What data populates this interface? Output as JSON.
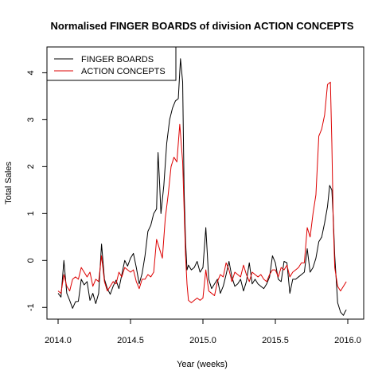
{
  "chart_data": {
    "type": "line",
    "title": "Normalised FINGER BOARDS of division ACTION CONCEPTS",
    "xlabel": "Year (weeks)",
    "ylabel": "Total Sales",
    "xlim": [
      2014.0,
      2016.0
    ],
    "ylim": [
      -1.25,
      4.55
    ],
    "xticks": [
      2014.0,
      2014.5,
      2015.0,
      2015.5,
      2016.0
    ],
    "xtick_labels": [
      "2014.0",
      "2014.5",
      "2015.0",
      "2015.5",
      "2016.0"
    ],
    "yticks": [
      -1,
      0,
      1,
      2,
      3,
      4
    ],
    "ytick_labels": [
      "-1",
      "0",
      "1",
      "2",
      "3",
      "4"
    ],
    "grid": false,
    "legend": "top-left",
    "series": [
      {
        "name": "FINGER BOARDS",
        "color": "#000000",
        "points": [
          [
            2014.0,
            -0.7
          ],
          [
            2014.02,
            -0.78
          ],
          [
            2014.04,
            0.0
          ],
          [
            2014.06,
            -0.7
          ],
          [
            2014.08,
            -0.85
          ],
          [
            2014.1,
            -1.02
          ],
          [
            2014.12,
            -0.88
          ],
          [
            2014.14,
            -0.87
          ],
          [
            2014.16,
            -0.4
          ],
          [
            2014.18,
            -0.52
          ],
          [
            2014.2,
            -0.45
          ],
          [
            2014.22,
            -0.85
          ],
          [
            2014.24,
            -0.7
          ],
          [
            2014.26,
            -0.92
          ],
          [
            2014.28,
            -0.7
          ],
          [
            2014.3,
            0.35
          ],
          [
            2014.32,
            -0.4
          ],
          [
            2014.34,
            -0.6
          ],
          [
            2014.36,
            -0.72
          ],
          [
            2014.38,
            -0.55
          ],
          [
            2014.4,
            -0.42
          ],
          [
            2014.42,
            -0.6
          ],
          [
            2014.44,
            -0.3
          ],
          [
            2014.46,
            0.0
          ],
          [
            2014.48,
            -0.12
          ],
          [
            2014.5,
            0.05
          ],
          [
            2014.52,
            0.15
          ],
          [
            2014.54,
            -0.15
          ],
          [
            2014.56,
            -0.5
          ],
          [
            2014.58,
            -0.28
          ],
          [
            2014.6,
            0.1
          ],
          [
            2014.62,
            0.62
          ],
          [
            2014.64,
            0.75
          ],
          [
            2014.66,
            1.0
          ],
          [
            2014.68,
            1.1
          ],
          [
            2014.69,
            2.3
          ],
          [
            2014.7,
            1.7
          ],
          [
            2014.71,
            1.0
          ],
          [
            2014.73,
            1.6
          ],
          [
            2014.75,
            2.5
          ],
          [
            2014.77,
            3.0
          ],
          [
            2014.79,
            3.25
          ],
          [
            2014.81,
            3.4
          ],
          [
            2014.83,
            3.45
          ],
          [
            2014.845,
            4.3
          ],
          [
            2014.86,
            3.8
          ],
          [
            2014.87,
            1.5
          ],
          [
            2014.88,
            0.4
          ],
          [
            2014.89,
            -0.2
          ],
          [
            2014.9,
            -0.1
          ],
          [
            2014.92,
            -0.2
          ],
          [
            2014.94,
            -0.15
          ],
          [
            2014.96,
            -0.02
          ],
          [
            2014.98,
            -0.25
          ],
          [
            2015.0,
            -0.15
          ],
          [
            2015.02,
            0.7
          ],
          [
            2015.04,
            -0.4
          ],
          [
            2015.06,
            -0.6
          ],
          [
            2015.08,
            -0.5
          ],
          [
            2015.1,
            -0.4
          ],
          [
            2015.12,
            -0.7
          ],
          [
            2015.14,
            -0.55
          ],
          [
            2015.16,
            -0.3
          ],
          [
            2015.18,
            -0.02
          ],
          [
            2015.2,
            -0.35
          ],
          [
            2015.22,
            -0.55
          ],
          [
            2015.24,
            -0.5
          ],
          [
            2015.26,
            -0.4
          ],
          [
            2015.28,
            -0.65
          ],
          [
            2015.3,
            -0.45
          ],
          [
            2015.32,
            -0.05
          ],
          [
            2015.34,
            -0.5
          ],
          [
            2015.36,
            -0.4
          ],
          [
            2015.38,
            -0.5
          ],
          [
            2015.4,
            -0.55
          ],
          [
            2015.42,
            -0.6
          ],
          [
            2015.44,
            -0.5
          ],
          [
            2015.46,
            -0.35
          ],
          [
            2015.48,
            0.1
          ],
          [
            2015.5,
            -0.05
          ],
          [
            2015.52,
            -0.4
          ],
          [
            2015.54,
            -0.45
          ],
          [
            2015.56,
            -0.02
          ],
          [
            2015.58,
            -0.05
          ],
          [
            2015.6,
            -0.7
          ],
          [
            2015.62,
            -0.4
          ],
          [
            2015.64,
            -0.4
          ],
          [
            2015.66,
            -0.35
          ],
          [
            2015.68,
            -0.3
          ],
          [
            2015.7,
            -0.25
          ],
          [
            2015.72,
            0.25
          ],
          [
            2015.74,
            -0.25
          ],
          [
            2015.76,
            -0.15
          ],
          [
            2015.78,
            0.05
          ],
          [
            2015.8,
            0.4
          ],
          [
            2015.82,
            0.5
          ],
          [
            2015.84,
            0.8
          ],
          [
            2015.86,
            1.15
          ],
          [
            2015.875,
            1.6
          ],
          [
            2015.89,
            1.5
          ],
          [
            2015.9,
            0.9
          ],
          [
            2015.91,
            0.1
          ],
          [
            2015.92,
            -0.4
          ],
          [
            2015.93,
            -0.9
          ],
          [
            2015.95,
            -1.1
          ],
          [
            2015.97,
            -1.17
          ],
          [
            2015.98,
            -1.1
          ],
          [
            2015.99,
            -1.05
          ]
        ]
      },
      {
        "name": "ACTION CONCEPTS",
        "color": "#dd0000",
        "points": [
          [
            2014.0,
            -0.65
          ],
          [
            2014.02,
            -0.7
          ],
          [
            2014.04,
            -0.3
          ],
          [
            2014.06,
            -0.55
          ],
          [
            2014.08,
            -0.65
          ],
          [
            2014.1,
            -0.4
          ],
          [
            2014.12,
            -0.35
          ],
          [
            2014.14,
            -0.4
          ],
          [
            2014.16,
            -0.15
          ],
          [
            2014.18,
            -0.25
          ],
          [
            2014.2,
            -0.35
          ],
          [
            2014.22,
            -0.25
          ],
          [
            2014.24,
            -0.55
          ],
          [
            2014.26,
            -0.4
          ],
          [
            2014.28,
            -0.45
          ],
          [
            2014.3,
            0.1
          ],
          [
            2014.32,
            -0.45
          ],
          [
            2014.34,
            -0.65
          ],
          [
            2014.36,
            -0.55
          ],
          [
            2014.38,
            -0.45
          ],
          [
            2014.4,
            -0.5
          ],
          [
            2014.42,
            -0.25
          ],
          [
            2014.44,
            -0.35
          ],
          [
            2014.46,
            -0.15
          ],
          [
            2014.48,
            -0.2
          ],
          [
            2014.5,
            -0.25
          ],
          [
            2014.52,
            -0.2
          ],
          [
            2014.54,
            -0.45
          ],
          [
            2014.56,
            -0.6
          ],
          [
            2014.58,
            -0.4
          ],
          [
            2014.6,
            -0.4
          ],
          [
            2014.62,
            -0.3
          ],
          [
            2014.64,
            -0.35
          ],
          [
            2014.66,
            -0.25
          ],
          [
            2014.68,
            0.45
          ],
          [
            2014.7,
            0.25
          ],
          [
            2014.72,
            0.05
          ],
          [
            2014.74,
            0.9
          ],
          [
            2014.76,
            1.4
          ],
          [
            2014.78,
            2.0
          ],
          [
            2014.8,
            2.2
          ],
          [
            2014.82,
            2.1
          ],
          [
            2014.84,
            2.9
          ],
          [
            2014.86,
            2.1
          ],
          [
            2014.87,
            1.1
          ],
          [
            2014.88,
            0.1
          ],
          [
            2014.89,
            -0.5
          ],
          [
            2014.9,
            -0.85
          ],
          [
            2014.92,
            -0.9
          ],
          [
            2014.94,
            -0.85
          ],
          [
            2014.96,
            -0.8
          ],
          [
            2014.98,
            -0.85
          ],
          [
            2015.0,
            -0.8
          ],
          [
            2015.02,
            -0.2
          ],
          [
            2015.04,
            -0.65
          ],
          [
            2015.06,
            -0.7
          ],
          [
            2015.08,
            -0.75
          ],
          [
            2015.1,
            -0.45
          ],
          [
            2015.12,
            -0.3
          ],
          [
            2015.14,
            -0.35
          ],
          [
            2015.16,
            -0.05
          ],
          [
            2015.18,
            -0.2
          ],
          [
            2015.2,
            -0.45
          ],
          [
            2015.22,
            -0.25
          ],
          [
            2015.24,
            -0.3
          ],
          [
            2015.26,
            -0.35
          ],
          [
            2015.28,
            -0.1
          ],
          [
            2015.3,
            -0.3
          ],
          [
            2015.32,
            -0.45
          ],
          [
            2015.34,
            -0.25
          ],
          [
            2015.36,
            -0.3
          ],
          [
            2015.38,
            -0.35
          ],
          [
            2015.4,
            -0.3
          ],
          [
            2015.42,
            -0.4
          ],
          [
            2015.44,
            -0.45
          ],
          [
            2015.46,
            -0.3
          ],
          [
            2015.48,
            -0.2
          ],
          [
            2015.5,
            -0.2
          ],
          [
            2015.52,
            -0.35
          ],
          [
            2015.54,
            -0.15
          ],
          [
            2015.56,
            -0.2
          ],
          [
            2015.58,
            -0.1
          ],
          [
            2015.6,
            -0.35
          ],
          [
            2015.62,
            -0.25
          ],
          [
            2015.64,
            -0.2
          ],
          [
            2015.66,
            -0.15
          ],
          [
            2015.68,
            -0.05
          ],
          [
            2015.7,
            -0.05
          ],
          [
            2015.72,
            0.7
          ],
          [
            2015.74,
            0.5
          ],
          [
            2015.76,
            1.0
          ],
          [
            2015.78,
            1.4
          ],
          [
            2015.8,
            2.65
          ],
          [
            2015.82,
            2.8
          ],
          [
            2015.84,
            3.1
          ],
          [
            2015.86,
            3.75
          ],
          [
            2015.88,
            3.8
          ],
          [
            2015.89,
            2.5
          ],
          [
            2015.9,
            0.8
          ],
          [
            2015.91,
            -0.15
          ],
          [
            2015.93,
            -0.55
          ],
          [
            2015.95,
            -0.65
          ],
          [
            2015.97,
            -0.55
          ],
          [
            2015.99,
            -0.45
          ]
        ]
      }
    ]
  }
}
